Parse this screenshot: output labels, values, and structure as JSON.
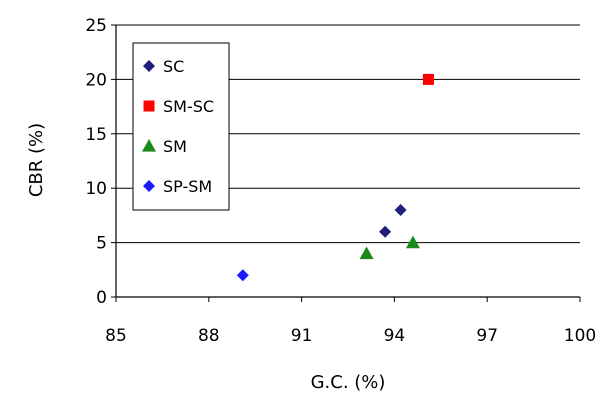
{
  "chart_data": {
    "type": "scatter",
    "title": "",
    "xlabel": "G.C. (%)",
    "ylabel": "CBR (%)",
    "xlim": [
      85,
      100
    ],
    "ylim": [
      0,
      25
    ],
    "xticks": [
      "85",
      "88",
      "91",
      "94",
      "97",
      "100"
    ],
    "yticks": [
      "0",
      "5",
      "10",
      "15",
      "20",
      "25"
    ],
    "grid": "horizontal",
    "legend_position": "top-left",
    "series": [
      {
        "name": "SC",
        "marker": "diamond",
        "color": "#1f1f7a",
        "points": [
          [
            94.2,
            8
          ],
          [
            93.7,
            6
          ]
        ]
      },
      {
        "name": "SM-SC",
        "marker": "square",
        "color": "#ff0000",
        "points": [
          [
            95.1,
            20
          ]
        ]
      },
      {
        "name": "SM",
        "marker": "triangle",
        "color": "#1a8a1a",
        "points": [
          [
            93.1,
            4
          ],
          [
            94.6,
            5
          ]
        ]
      },
      {
        "name": "SP-SM",
        "marker": "diamond",
        "color": "#1a1aff",
        "points": [
          [
            89.1,
            2
          ]
        ]
      }
    ]
  }
}
